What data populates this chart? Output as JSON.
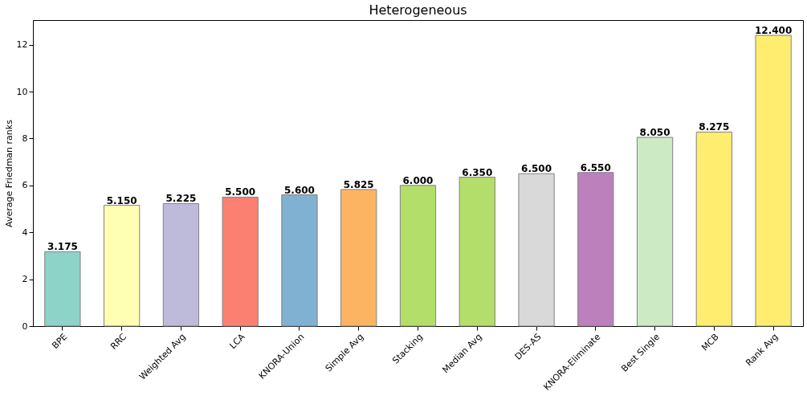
{
  "chart_data": {
    "type": "bar",
    "title": "Heterogeneous",
    "ylabel": "Average Friedman ranks",
    "categories": [
      "BPE",
      "RRC",
      "Weighted Avg",
      "LCA",
      "KNORA-Union",
      "Simple Avg",
      "Stacking",
      "Median Avg",
      "DES-AS",
      "KNORA-Eliminate",
      "Best Single",
      "MCB",
      "Rank Avg"
    ],
    "values": [
      3.175,
      5.15,
      5.225,
      5.5,
      5.6,
      5.825,
      6.0,
      6.35,
      6.5,
      6.55,
      8.05,
      8.275,
      12.4
    ],
    "value_labels": [
      "3.175",
      "5.150",
      "5.225",
      "5.500",
      "5.600",
      "5.825",
      "6.000",
      "6.350",
      "6.500",
      "6.550",
      "8.050",
      "8.275",
      "12.400"
    ],
    "colors": [
      "#8dd3c7",
      "#ffffb3",
      "#bebada",
      "#fb8072",
      "#80b1d3",
      "#fdb462",
      "#b3de69",
      "#b3de69",
      "#d9d9d9",
      "#bc80bd",
      "#ccebc5",
      "#ffed6f",
      "#ffed6f"
    ],
    "ylim": [
      0,
      13.05
    ],
    "yticks": [
      0,
      2,
      4,
      6,
      8,
      10,
      12
    ],
    "grid": false
  }
}
